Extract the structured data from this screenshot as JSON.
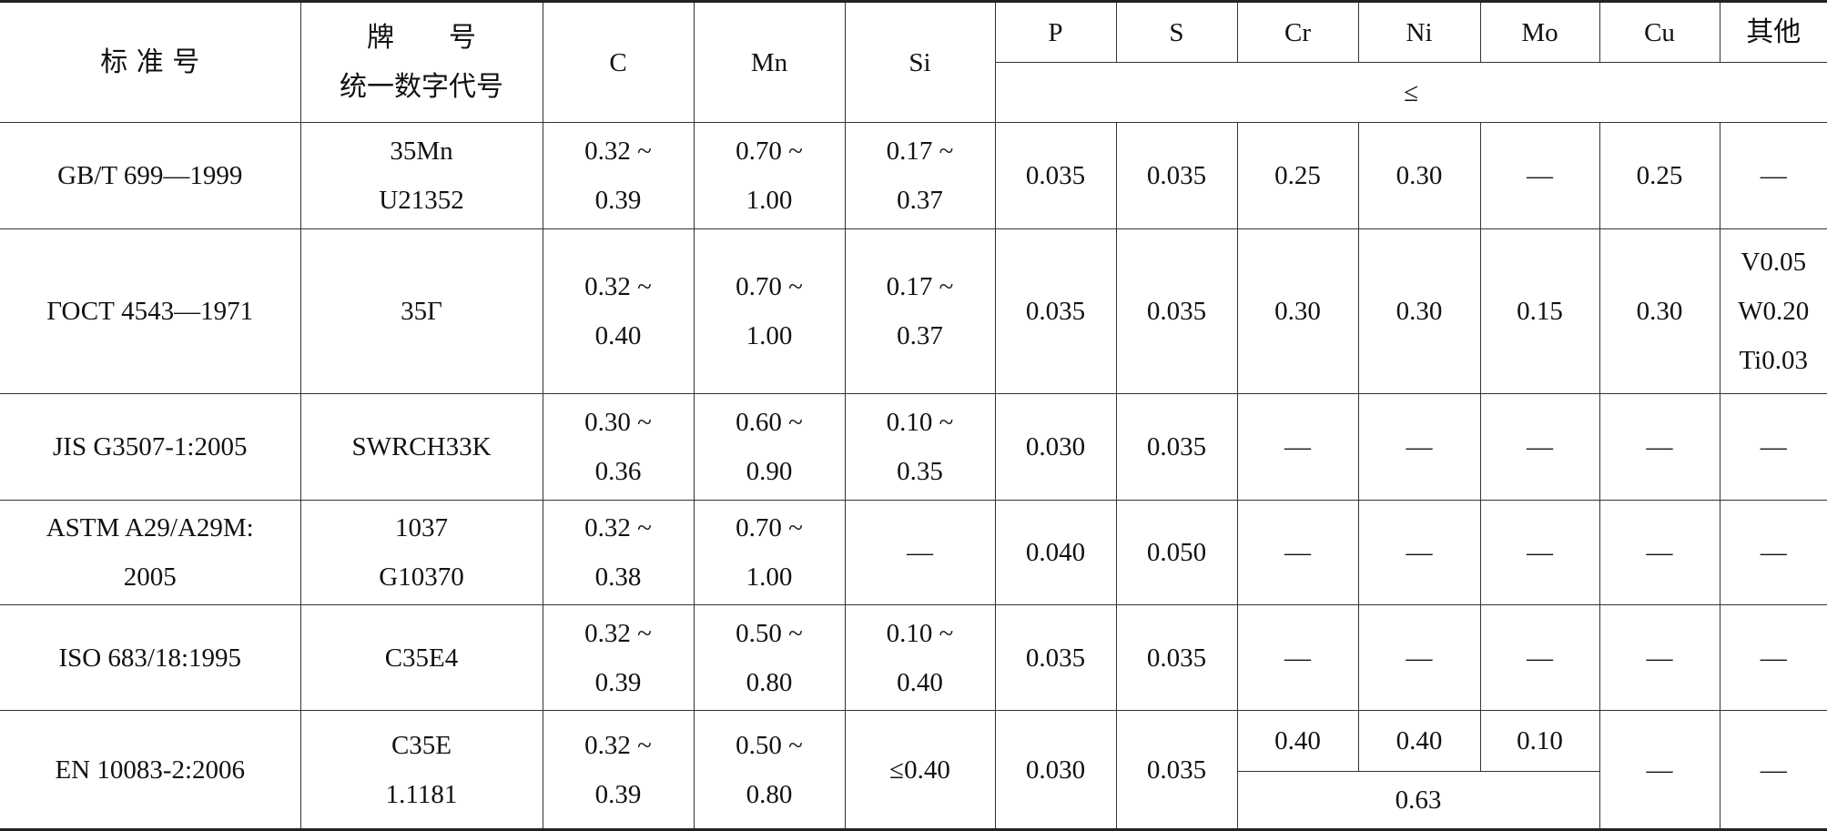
{
  "header": {
    "standard": "标 准 号",
    "grade": [
      "牌　　号",
      "统一数字代号"
    ],
    "elements": [
      "C",
      "Mn",
      "Si",
      "P",
      "S",
      "Cr",
      "Ni",
      "Mo",
      "Cu",
      "其他"
    ],
    "max_note": "≤"
  },
  "rows": [
    {
      "cells": [
        [
          "GB/T 699—1999"
        ],
        [
          "35Mn",
          "U21352"
        ],
        [
          "0.32 ~",
          "0.39"
        ],
        [
          "0.70 ~",
          "1.00"
        ],
        [
          "0.17 ~",
          "0.37"
        ],
        [
          "0.035"
        ],
        [
          "0.035"
        ],
        [
          "0.25"
        ],
        [
          "0.30"
        ],
        [
          "—"
        ],
        [
          "0.25"
        ],
        [
          "—"
        ]
      ]
    },
    {
      "cells": [
        [
          "ГОСТ 4543—1971"
        ],
        [
          "35Г"
        ],
        [
          "0.32 ~",
          "0.40"
        ],
        [
          "0.70 ~",
          "1.00"
        ],
        [
          "0.17 ~",
          "0.37"
        ],
        [
          "0.035"
        ],
        [
          "0.035"
        ],
        [
          "0.30"
        ],
        [
          "0.30"
        ],
        [
          "0.15"
        ],
        [
          "0.30"
        ],
        [
          "V0.05",
          "W0.20",
          "Ti0.03"
        ]
      ]
    },
    {
      "cells": [
        [
          "JIS G3507-1:2005"
        ],
        [
          "SWRCH33K"
        ],
        [
          "0.30 ~",
          "0.36"
        ],
        [
          "0.60 ~",
          "0.90"
        ],
        [
          "0.10 ~",
          "0.35"
        ],
        [
          "0.030"
        ],
        [
          "0.035"
        ],
        [
          "—"
        ],
        [
          "—"
        ],
        [
          "—"
        ],
        [
          "—"
        ],
        [
          "—"
        ]
      ]
    },
    {
      "cells": [
        [
          "ASTM A29/A29M:",
          "2005"
        ],
        [
          "1037",
          "G10370"
        ],
        [
          "0.32 ~",
          "0.38"
        ],
        [
          "0.70 ~",
          "1.00"
        ],
        [
          "—"
        ],
        [
          "0.040"
        ],
        [
          "0.050"
        ],
        [
          "—"
        ],
        [
          "—"
        ],
        [
          "—"
        ],
        [
          "—"
        ],
        [
          "—"
        ]
      ]
    },
    {
      "cells": [
        [
          "ISO 683/18:1995"
        ],
        [
          "C35E4"
        ],
        [
          "0.32 ~",
          "0.39"
        ],
        [
          "0.50 ~",
          "0.80"
        ],
        [
          "0.10 ~",
          "0.40"
        ],
        [
          "0.035"
        ],
        [
          "0.035"
        ],
        [
          "—"
        ],
        [
          "—"
        ],
        [
          "—"
        ],
        [
          "—"
        ],
        [
          "—"
        ]
      ]
    },
    {
      "cells": [
        [
          "EN 10083-2:2006"
        ],
        [
          "C35E",
          "1.1181"
        ],
        [
          "0.32 ~",
          "0.39"
        ],
        [
          "0.50 ~",
          "0.80"
        ],
        [
          "≤0.40"
        ],
        [
          "0.030"
        ],
        [
          "0.035"
        ],
        [
          "0.40"
        ],
        [
          "0.40"
        ],
        [
          "0.10"
        ],
        [
          "—"
        ],
        [
          "—"
        ]
      ],
      "combined": "0.63"
    }
  ]
}
